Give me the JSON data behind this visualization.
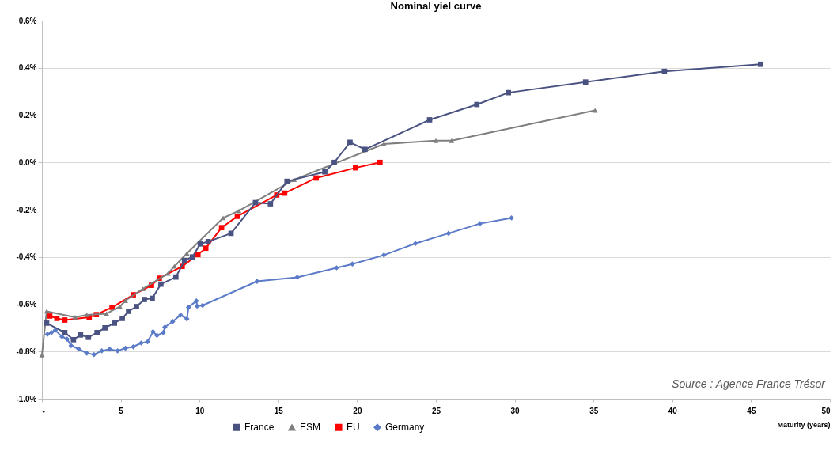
{
  "chart_data": {
    "type": "line",
    "title": "Nominal yiel curve",
    "xlabel": "Maturity (years)",
    "xlim": [
      0,
      50
    ],
    "xticks": [
      {
        "value": 0,
        "label": "-"
      },
      5,
      10,
      15,
      20,
      25,
      30,
      35,
      40,
      45,
      50
    ],
    "ylim": [
      -1.0,
      0.6
    ],
    "yticks": [
      {
        "value": -1.0,
        "label": "-1.0%"
      },
      {
        "value": -0.8,
        "label": "-0.8%"
      },
      {
        "value": -0.6,
        "label": "-0.6%"
      },
      {
        "value": -0.4,
        "label": "-0.4%"
      },
      {
        "value": -0.2,
        "label": "-0.2%"
      },
      {
        "value": 0.0,
        "label": "0.0%"
      },
      {
        "value": 0.2,
        "label": "0.2%"
      },
      {
        "value": 0.4,
        "label": "0.4%"
      },
      {
        "value": 0.6,
        "label": "0.6%"
      }
    ],
    "grid": "y",
    "legend": "bottom",
    "annotations": [
      "Source : Agence France Trésor"
    ],
    "series": [
      {
        "name": "France",
        "color": "#4a5281",
        "marker": "square",
        "x": [
          0.3,
          1.45,
          2.0,
          2.45,
          2.95,
          3.5,
          4.0,
          4.6,
          5.1,
          5.5,
          6.0,
          6.5,
          7.0,
          7.55,
          8.5,
          9.05,
          9.55,
          10.05,
          10.55,
          12.0,
          13.55,
          14.5,
          15.55,
          17.95,
          18.55,
          19.55,
          20.5,
          24.6,
          27.6,
          29.6,
          34.5,
          39.5,
          45.6
        ],
        "values": [
          -0.68,
          -0.72,
          -0.75,
          -0.73,
          -0.74,
          -0.72,
          -0.7,
          -0.68,
          -0.66,
          -0.63,
          -0.61,
          -0.58,
          -0.575,
          -0.515,
          -0.485,
          -0.415,
          -0.4,
          -0.345,
          -0.335,
          -0.3,
          -0.17,
          -0.175,
          -0.08,
          -0.04,
          0.0,
          0.085,
          0.055,
          0.18,
          0.245,
          0.295,
          0.34,
          0.385,
          0.415
        ]
      },
      {
        "name": "ESM",
        "color": "#7f7f7f",
        "marker": "triangle",
        "x": [
          0,
          0.3,
          2.1,
          2.85,
          4.1,
          4.95,
          5.3,
          6.4,
          8.0,
          8.4,
          9.2,
          11.5,
          12.5,
          16.0,
          21.7,
          25.0,
          26.0,
          35.1
        ],
        "values": [
          -0.815,
          -0.63,
          -0.655,
          -0.645,
          -0.64,
          -0.61,
          -0.585,
          -0.535,
          -0.47,
          -0.44,
          -0.385,
          -0.235,
          -0.205,
          -0.073,
          0.078,
          0.092,
          0.092,
          0.22
        ]
      },
      {
        "name": "EU",
        "color": "#ff0000",
        "marker": "square",
        "x": [
          0.5,
          0.95,
          1.45,
          3.0,
          3.45,
          4.45,
          5.8,
          6.95,
          7.45,
          8.9,
          9.9,
          10.4,
          11.4,
          12.4,
          14.9,
          15.4,
          17.4,
          19.9,
          21.45
        ],
        "values": [
          -0.65,
          -0.66,
          -0.667,
          -0.655,
          -0.644,
          -0.613,
          -0.56,
          -0.52,
          -0.49,
          -0.44,
          -0.39,
          -0.363,
          -0.276,
          -0.228,
          -0.138,
          -0.13,
          -0.066,
          -0.023,
          0.0
        ]
      },
      {
        "name": "Germany",
        "color": "#5b7bc8",
        "marker": "diamond",
        "x": [
          0.35,
          0.6,
          0.85,
          1.27,
          1.6,
          1.85,
          2.35,
          2.85,
          3.3,
          3.8,
          4.3,
          4.8,
          5.3,
          5.8,
          6.3,
          6.7,
          7.05,
          7.3,
          7.7,
          7.8,
          8.3,
          8.8,
          9.2,
          9.3,
          9.8,
          9.85,
          10.2,
          13.65,
          16.2,
          18.7,
          19.7,
          21.7,
          23.7,
          25.8,
          27.8,
          29.8
        ],
        "values": [
          -0.727,
          -0.72,
          -0.71,
          -0.737,
          -0.748,
          -0.775,
          -0.79,
          -0.807,
          -0.813,
          -0.797,
          -0.79,
          -0.797,
          -0.786,
          -0.78,
          -0.764,
          -0.759,
          -0.716,
          -0.732,
          -0.72,
          -0.697,
          -0.673,
          -0.646,
          -0.662,
          -0.613,
          -0.586,
          -0.608,
          -0.605,
          -0.503,
          -0.486,
          -0.446,
          -0.43,
          -0.392,
          -0.343,
          -0.3,
          -0.259,
          -0.235
        ]
      }
    ]
  }
}
